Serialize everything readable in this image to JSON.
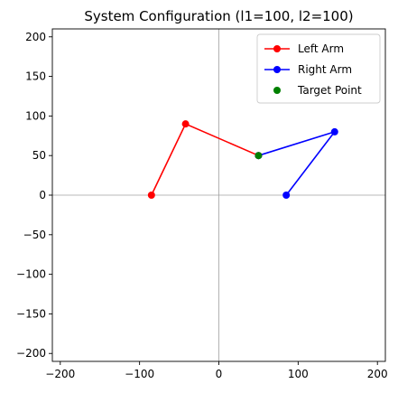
{
  "chart_data": {
    "type": "line",
    "title": "System Configuration (l1=100, l2=100)",
    "xlabel": "",
    "ylabel": "",
    "xlim": [
      -210,
      210
    ],
    "ylim": [
      -210,
      210
    ],
    "xticks": [
      -200,
      -100,
      0,
      100,
      200
    ],
    "yticks": [
      -200,
      -150,
      -100,
      -50,
      0,
      50,
      100,
      150,
      200
    ],
    "grid": false,
    "reference_lines": {
      "x": 0,
      "y": 0,
      "color": "#a0a0a0"
    },
    "legend_position": "top-right",
    "series": [
      {
        "name": "Left Arm",
        "color": "#ff0000",
        "style": "line-with-markers",
        "points": [
          {
            "x": -85,
            "y": 0
          },
          {
            "x": -42,
            "y": 90
          },
          {
            "x": 50,
            "y": 50
          }
        ]
      },
      {
        "name": "Right Arm",
        "color": "#0000ff",
        "style": "line-with-markers",
        "points": [
          {
            "x": 85,
            "y": 0
          },
          {
            "x": 146,
            "y": 80
          },
          {
            "x": 50,
            "y": 50
          }
        ]
      },
      {
        "name": "Target Point",
        "color": "#008000",
        "style": "marker",
        "points": [
          {
            "x": 50,
            "y": 50
          }
        ]
      }
    ]
  }
}
